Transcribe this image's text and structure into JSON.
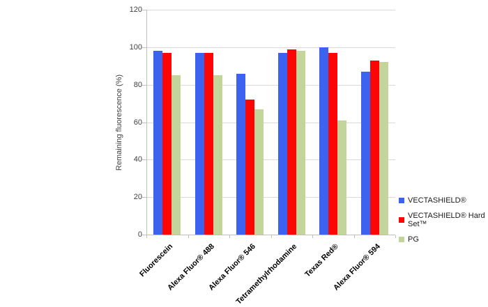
{
  "chart_data": {
    "type": "bar",
    "title": "",
    "xlabel": "",
    "ylabel": "Remaining fluorescence (%)",
    "ylim": [
      0,
      120
    ],
    "yticks": [
      0,
      20,
      40,
      60,
      80,
      100,
      120
    ],
    "grid": true,
    "legend_position": "right",
    "categories": [
      "Fluorescein",
      "Alexa Fluor® 488",
      "Alexa Fluor® 546",
      "Tetramethylrhodamine",
      "Texas Red®",
      "Alexa Fluor® 594"
    ],
    "series": [
      {
        "name": "VECTASHIELD®",
        "color": "#3C63F0",
        "values": [
          98,
          97,
          86,
          97,
          100,
          87
        ]
      },
      {
        "name": "VECTASHIELD® Hard Set™",
        "color": "#FB0505",
        "values": [
          97,
          97,
          72,
          99,
          97,
          93
        ]
      },
      {
        "name": "PG",
        "color": "#C4D59B",
        "values": [
          85,
          85,
          67,
          98,
          61,
          92
        ]
      }
    ]
  },
  "style": {
    "background": "#FFFFFF",
    "gridline_color": "#D9D9D9",
    "axis_color": "#BFBFBF",
    "tick_label_color": "#404040",
    "axis_title_color": "#404040",
    "category_label_color": "#000000",
    "legend_text_color": "#1A1A1A"
  }
}
